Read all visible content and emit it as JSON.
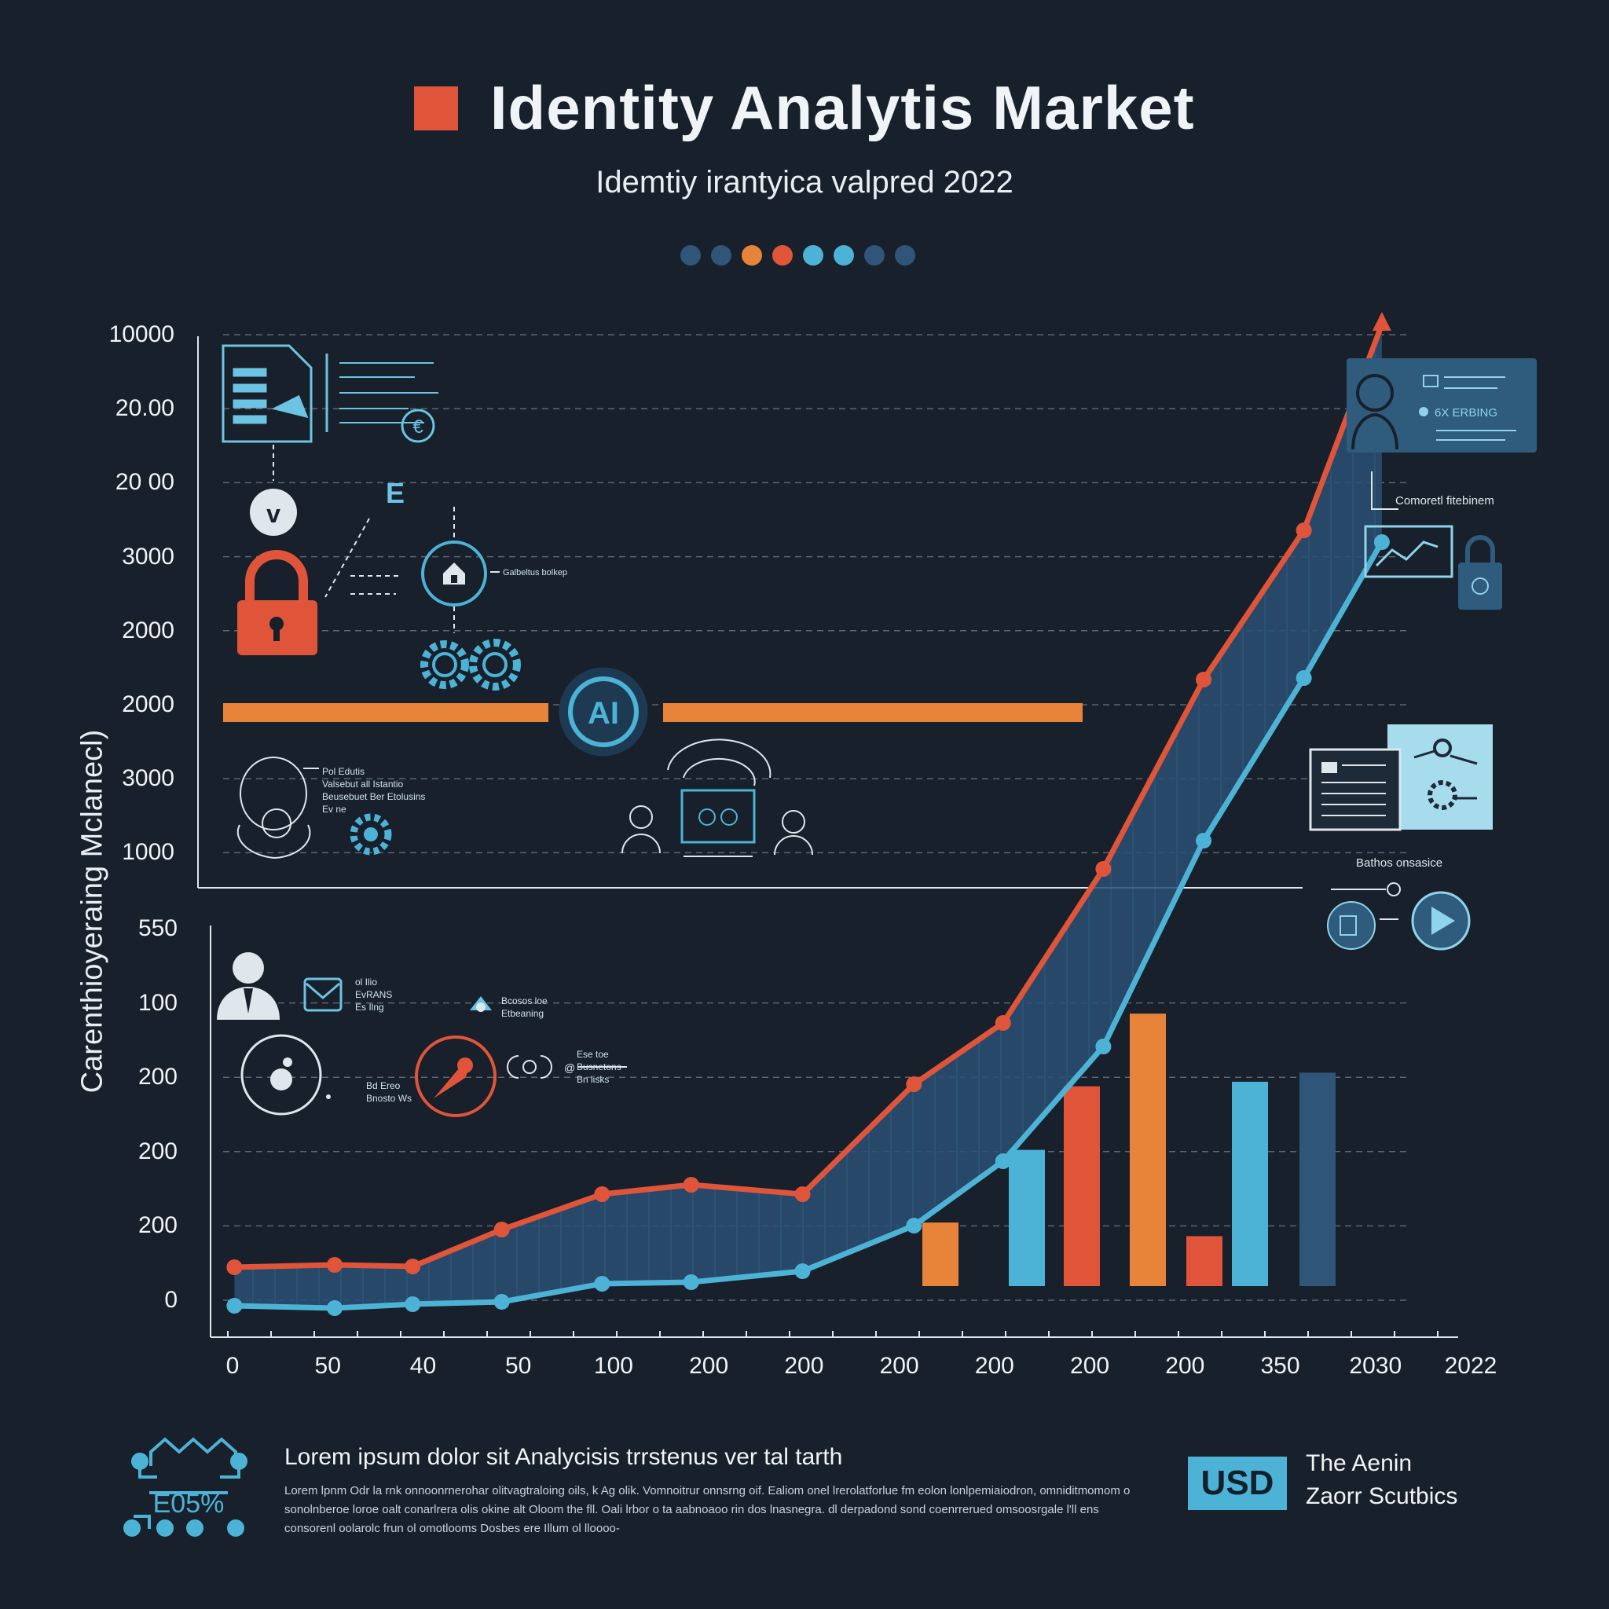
{
  "header": {
    "title": "Identity Analytis Market",
    "subtitle": "Idemtiy irantyica valpred 2022",
    "dot_colors": [
      "#2f5579",
      "#2f5579",
      "#e8843a",
      "#e0553a",
      "#4db3d6",
      "#4db3d6",
      "#2f5579",
      "#2f5579"
    ]
  },
  "chart_data": {
    "type": "line",
    "ylabel": "Carenthioyeraing Mclanecl)",
    "y_ticks_top": [
      "10000",
      "20.00",
      "20 00",
      "3000",
      "2000",
      "2000",
      "3000",
      "1000"
    ],
    "y_ticks_bottom": [
      "550",
      "100",
      "200",
      "200",
      "200",
      "0"
    ],
    "x_ticks": [
      "0",
      "50",
      "40",
      "50",
      "100",
      "200",
      "200",
      "200",
      "200",
      "200",
      "200",
      "350",
      "2030",
      "2022"
    ],
    "series": [
      {
        "color": "#e0553a",
        "points": [
          [
            0.02,
            1613
          ],
          [
            0.11,
            1610
          ],
          [
            0.18,
            1612
          ],
          [
            0.26,
            1565
          ],
          [
            0.35,
            1520
          ],
          [
            0.43,
            1508
          ],
          [
            0.53,
            1520
          ],
          [
            0.63,
            1380
          ],
          [
            0.71,
            1302
          ],
          [
            0.8,
            1106
          ],
          [
            0.89,
            865
          ],
          [
            0.98,
            675
          ],
          [
            1.05,
            413
          ]
        ]
      },
      {
        "color": "#4db3d6",
        "points": [
          [
            0.02,
            1662
          ],
          [
            0.11,
            1665
          ],
          [
            0.18,
            1660
          ],
          [
            0.26,
            1657
          ],
          [
            0.35,
            1634
          ],
          [
            0.43,
            1632
          ],
          [
            0.53,
            1618
          ],
          [
            0.63,
            1560
          ],
          [
            0.71,
            1478
          ],
          [
            0.8,
            1332
          ],
          [
            0.89,
            1070
          ],
          [
            0.98,
            863
          ],
          [
            1.05,
            690
          ]
        ]
      }
    ],
    "bars": [
      {
        "color": "#e8843a",
        "value": 0.14
      },
      {
        "color": "#4db3d6",
        "value": 0.3
      },
      {
        "color": "#e0553a",
        "value": 0.44
      },
      {
        "color": "#e8843a",
        "value": 0.6
      },
      {
        "color": "#e0553a",
        "value": 0.11
      },
      {
        "color": "#4db3d6",
        "value": 0.45
      },
      {
        "color": "#2f5579",
        "value": 0.47
      }
    ]
  },
  "annotations": {
    "ai": "AI",
    "e": "E",
    "profile": "6X ERBING",
    "corporate": "Comoretl fitebinem",
    "ui_label": "Galbeltus bolkep",
    "note_left": "Pol Edutis\nValsebut all Istantio\nBeusebuet Ber Etolusins\nEv ne",
    "batch": "Bathos onsasice",
    "mail": "ol Ilio\nEvRANS\nEs Ilng",
    "cloud": "Bcosos loe\nEtbeaning",
    "eye": "Bd Ereo\nBnosto Ws",
    "link": "Ese toe\nBusnetons\nBn lisks"
  },
  "footer": {
    "heading": "Lorem ipsum dolor sit Analycisis trrstenus ver tal tarth",
    "body": "Lorem lpnm Odr la rnk onnoonrnerohar olitvagtraloing oils, k Ag olik. Vomnoitrur onnsrng oif. Ealiom onel lrerolatforlue fm eolon lonlpemiaiodron, omniditmomom o sonolnberoe loroe oalt conarlrera olis okine alt Oloom the fll. Oali lrbor o ta aabnoaoo rin dos lnasnegra. dl derpadond sond coenrrerued omsoosrgale l'll ens consorenl oolarolc frun ol omotlooms Dosbes ere Illum ol lloooo-",
    "badge_text": "E05%",
    "usd": "USD",
    "brand_line1": "The Aenin",
    "brand_line2": "Zaorr Scutbics"
  },
  "colors": {
    "background": "#18202b",
    "red": "#e0553a",
    "orange": "#e8843a",
    "cyan": "#4db3d6",
    "navy": "#2f5579",
    "area": "#2a5073"
  }
}
